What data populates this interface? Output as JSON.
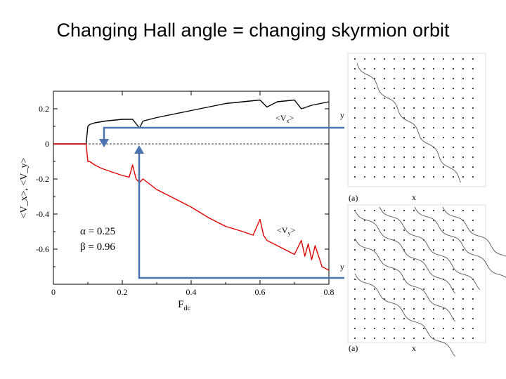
{
  "slide": {
    "title": "Changing Hall angle = changing skyrmion orbit"
  },
  "chart_data": {
    "type": "line",
    "xlabel": "F",
    "xlabel_sub": "dc",
    "ylabel": "<V_x>, <V_y>",
    "xlim": [
      0,
      0.8
    ],
    "ylim": [
      -0.8,
      0.3
    ],
    "x_ticks": [
      "0",
      "0.2",
      "0.4",
      "0.6",
      "0.8"
    ],
    "y_ticks": [
      "0.2",
      "0",
      "-0.2",
      "-0.4",
      "-0.6"
    ],
    "grid": false,
    "zero_line": true,
    "series": [
      {
        "name": "<V_x>",
        "color": "#000000",
        "x": [
          0.0,
          0.095,
          0.1,
          0.105,
          0.12,
          0.15,
          0.2,
          0.23,
          0.25,
          0.26,
          0.3,
          0.35,
          0.4,
          0.45,
          0.5,
          0.55,
          0.6,
          0.62,
          0.65,
          0.7,
          0.72,
          0.75,
          0.8
        ],
        "y": [
          0.0,
          0.0,
          0.1,
          0.11,
          0.12,
          0.13,
          0.14,
          0.14,
          0.09,
          0.13,
          0.15,
          0.17,
          0.19,
          0.21,
          0.23,
          0.24,
          0.25,
          0.21,
          0.24,
          0.25,
          0.2,
          0.22,
          0.24
        ]
      },
      {
        "name": "<V_y>",
        "color": "#e00000",
        "x": [
          0.0,
          0.095,
          0.1,
          0.105,
          0.12,
          0.14,
          0.17,
          0.2,
          0.22,
          0.23,
          0.24,
          0.25,
          0.26,
          0.3,
          0.35,
          0.4,
          0.45,
          0.5,
          0.55,
          0.58,
          0.6,
          0.61,
          0.62,
          0.65,
          0.68,
          0.7,
          0.72,
          0.73,
          0.74,
          0.75,
          0.76,
          0.78,
          0.8
        ],
        "y": [
          0.0,
          0.0,
          -0.1,
          -0.1,
          -0.12,
          -0.14,
          -0.16,
          -0.18,
          -0.19,
          -0.12,
          -0.2,
          -0.22,
          -0.2,
          -0.26,
          -0.31,
          -0.36,
          -0.42,
          -0.47,
          -0.5,
          -0.52,
          -0.43,
          -0.52,
          -0.55,
          -0.58,
          -0.61,
          -0.63,
          -0.55,
          -0.64,
          -0.57,
          -0.66,
          -0.58,
          -0.7,
          -0.72
        ]
      }
    ],
    "annotations": {
      "vx_label": "<V",
      "vx_sub": "x",
      "vx_close": ">",
      "vy_label": "<V",
      "vy_sub": "y",
      "vy_close": ">",
      "alpha": "α = 0.25",
      "beta": "β = 0.96"
    },
    "arrow_color": "#4a72b0"
  },
  "orbit_panels": [
    {
      "x_label": "x",
      "y_label": "y",
      "tag": "(a)"
    },
    {
      "x_label": "x",
      "y_label": "y",
      "tag": "(a)"
    }
  ]
}
